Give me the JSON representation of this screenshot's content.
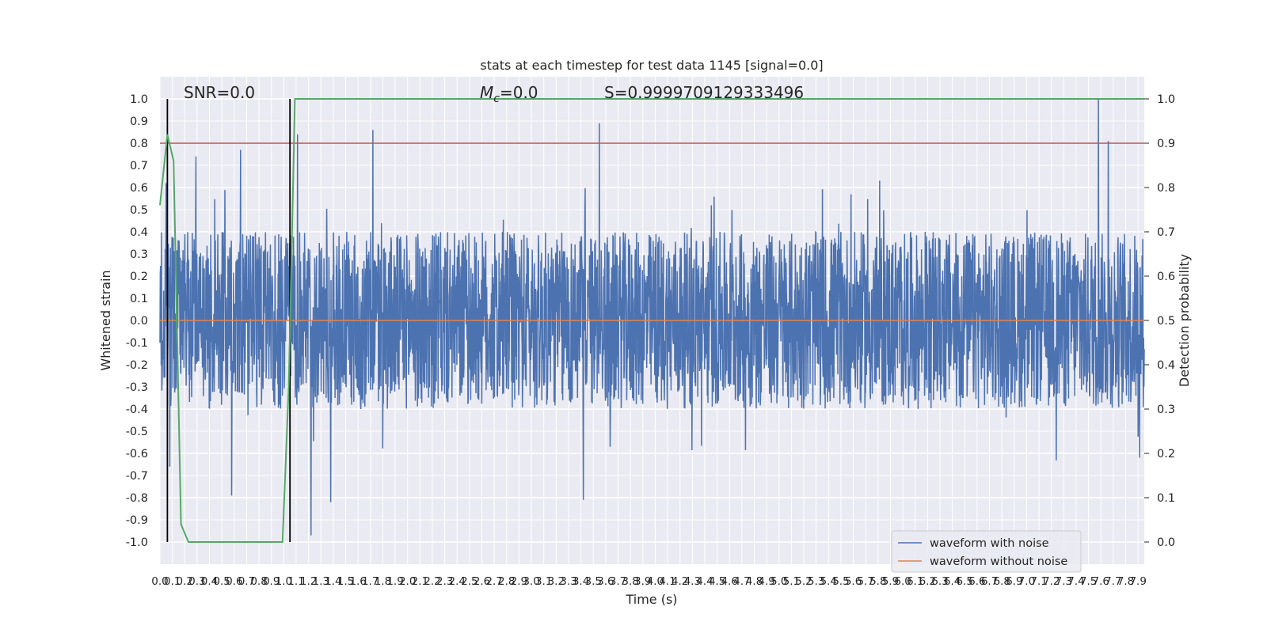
{
  "chart_data": {
    "type": "line",
    "title": "stats at each timestep for test data 1145 [signal=0.0]",
    "xlabel": "Time (s)",
    "ylabel_left": "Whitened strain",
    "ylabel_right": "Detection probability",
    "xlim": [
      0.0,
      7.95
    ],
    "ylim_left": [
      -1.1,
      1.1
    ],
    "ylim_right": [
      -0.05,
      1.05
    ],
    "x_ticks": [
      "0.0",
      "0.1",
      "0.2",
      "0.3",
      "0.4",
      "0.5",
      "0.6",
      "0.7",
      "0.8",
      "0.9",
      "1.0",
      "1.1",
      "1.2",
      "1.3",
      "1.4",
      "1.5",
      "1.6",
      "1.7",
      "1.8",
      "1.9",
      "2.0",
      "2.1",
      "2.2",
      "2.3",
      "2.4",
      "2.5",
      "2.6",
      "2.7",
      "2.8",
      "2.9",
      "3.0",
      "3.1",
      "3.2",
      "3.3",
      "3.4",
      "3.5",
      "3.6",
      "3.7",
      "3.8",
      "3.9",
      "4.0",
      "4.1",
      "4.2",
      "4.3",
      "4.4",
      "4.5",
      "4.6",
      "4.7",
      "4.8",
      "4.9",
      "5.0",
      "5.1",
      "5.2",
      "5.3",
      "5.4",
      "5.5",
      "5.6",
      "5.7",
      "5.8",
      "5.9",
      "6.0",
      "6.1",
      "6.2",
      "6.3",
      "6.4",
      "6.5",
      "6.6",
      "6.7",
      "6.8",
      "6.9",
      "7.0",
      "7.1",
      "7.2",
      "7.3",
      "7.4",
      "7.5",
      "7.6",
      "7.7",
      "7.8",
      "7.9"
    ],
    "y_ticks_left": [
      "-1.0",
      "-0.9",
      "-0.8",
      "-0.7",
      "-0.6",
      "-0.5",
      "-0.4",
      "-0.3",
      "-0.2",
      "-0.1",
      "0.0",
      "0.1",
      "0.2",
      "0.3",
      "0.4",
      "0.5",
      "0.6",
      "0.7",
      "0.8",
      "0.9",
      "1.0"
    ],
    "y_ticks_right": [
      "0.0",
      "0.1",
      "0.2",
      "0.3",
      "0.4",
      "0.5",
      "0.6",
      "0.7",
      "0.8",
      "0.9",
      "1.0"
    ],
    "annotations": {
      "snr": "SNR=0.0",
      "mc_symbol": "M",
      "mc_subscript": "c",
      "mc_value": "=0.0",
      "s": "S=0.9999709129333496"
    },
    "series": [
      {
        "name": "waveform with noise",
        "color": "#4c72b0",
        "axis": "left",
        "kind": "noise",
        "typical_amplitude": 0.4,
        "peak_values": [
          {
            "x": 0.05,
            "y": 0.62
          },
          {
            "x": 0.08,
            "y": -0.66
          },
          {
            "x": 0.29,
            "y": 0.74
          },
          {
            "x": 0.58,
            "y": -0.79
          },
          {
            "x": 0.65,
            "y": 0.77
          },
          {
            "x": 1.11,
            "y": 0.84
          },
          {
            "x": 1.22,
            "y": -0.97
          },
          {
            "x": 1.38,
            "y": -0.82
          },
          {
            "x": 1.72,
            "y": 0.86
          },
          {
            "x": 3.55,
            "y": 0.89
          },
          {
            "x": 3.42,
            "y": -0.81
          },
          {
            "x": 7.58,
            "y": 1.0
          },
          {
            "x": 7.66,
            "y": 0.81
          }
        ]
      },
      {
        "name": "waveform without noise",
        "color": "#dd8452",
        "axis": "left",
        "x": [
          0.0,
          7.95
        ],
        "y": [
          0.0,
          0.0
        ]
      },
      {
        "name": "detection probability",
        "color": "#55a868",
        "axis": "right",
        "x": [
          0.0,
          0.06,
          0.11,
          0.17,
          0.23,
          0.99,
          1.04,
          1.09,
          7.95
        ],
        "y": [
          0.76,
          0.92,
          0.86,
          0.04,
          0.0,
          0.0,
          0.35,
          1.0,
          1.0
        ]
      }
    ],
    "threshold": {
      "axis": "right",
      "value": 0.9,
      "color": "#c44e52"
    },
    "vertical_markers": {
      "x": [
        0.06,
        1.05
      ],
      "color": "#000000"
    },
    "grid": true,
    "legend_position": "lower-right"
  }
}
